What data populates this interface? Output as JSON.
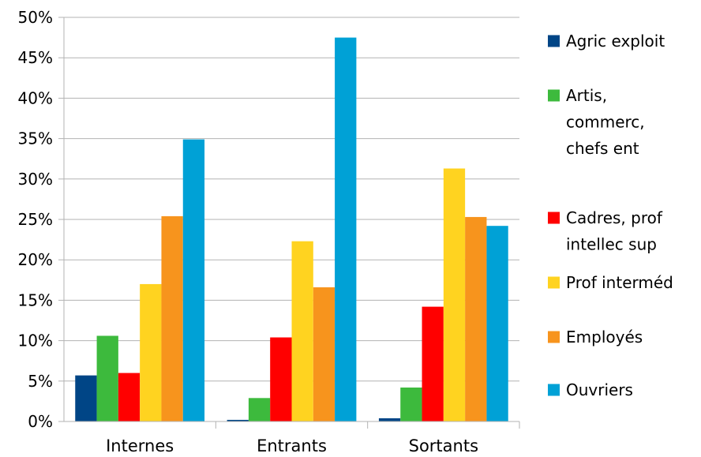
{
  "chart_data": {
    "type": "bar",
    "title": "",
    "xlabel": "",
    "ylabel": "",
    "categories": [
      "Internes",
      "Entrants",
      "Sortants"
    ],
    "series": [
      {
        "name": "Agric exploit",
        "color": "#004586",
        "values": [
          5.7,
          0.2,
          0.4
        ]
      },
      {
        "name": "Artis, commerc, chefs ent",
        "color": "#3dba3d",
        "values": [
          10.6,
          2.9,
          4.2
        ]
      },
      {
        "name": "Cadres, prof intellec sup",
        "color": "#ff0000",
        "values": [
          6.0,
          10.4,
          14.2
        ]
      },
      {
        "name": "Prof interméd",
        "color": "#ffd320",
        "values": [
          17.0,
          22.3,
          31.3
        ]
      },
      {
        "name": "Employés",
        "color": "#f7941d",
        "values": [
          25.4,
          16.6,
          25.3
        ]
      },
      {
        "name": "Ouvriers",
        "color": "#00a1d6",
        "values": [
          34.9,
          47.5,
          24.2
        ]
      }
    ],
    "ylim": [
      0,
      50
    ],
    "y_ticks": [
      0,
      5,
      10,
      15,
      20,
      25,
      30,
      35,
      40,
      45,
      50
    ],
    "y_tick_labels": [
      "0%",
      "5%",
      "10%",
      "15%",
      "20%",
      "25%",
      "30%",
      "35%",
      "40%",
      "45%",
      "50%"
    ],
    "grid": true,
    "legend_position": "right",
    "legend": [
      {
        "lines": [
          "Agric exploit"
        ]
      },
      {
        "lines": [
          "Artis,",
          "commerc,",
          "chefs ent"
        ]
      },
      {
        "lines": [
          "Cadres, prof",
          "intellec sup"
        ]
      },
      {
        "lines": [
          "Prof interméd"
        ]
      },
      {
        "lines": [
          "Employés"
        ]
      },
      {
        "lines": [
          "Ouvriers"
        ]
      }
    ]
  }
}
